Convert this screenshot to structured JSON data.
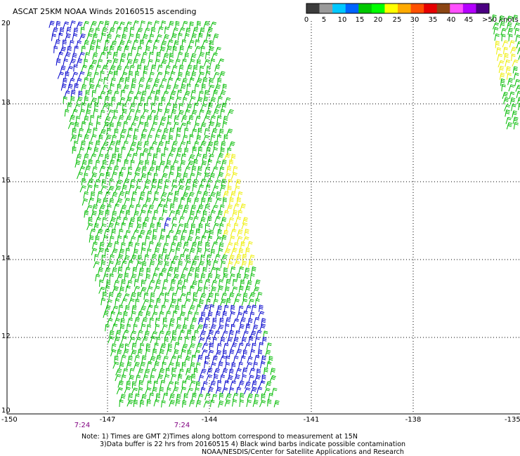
{
  "title": "ASCAT 25KM NOAA Winds 20160515 ascending",
  "legend": {
    "labels": [
      "0",
      "5",
      "10",
      "15",
      "20",
      "25",
      "30",
      "35",
      "40",
      "45",
      ">50 knots"
    ],
    "colors": [
      "#3c3c3c",
      "#9a9a9a",
      "#00c8ff",
      "#0064ff",
      "#00c800",
      "#00ff00",
      "#ffff00",
      "#ffaa00",
      "#ff5000",
      "#e60000",
      "#8b4513",
      "#ff50ff",
      "#b400ff",
      "#4b0082"
    ]
  },
  "map": {
    "lon_range": [
      -150,
      -135
    ],
    "lat_range": [
      10,
      20
    ],
    "lon_ticks": [
      "-150",
      "-147",
      "-144",
      "-141",
      "-138",
      "-135"
    ],
    "lat_ticks": [
      "20",
      "18",
      "16",
      "14",
      "12",
      "10"
    ],
    "time_labels": [
      "7:24",
      "7:24"
    ],
    "time_color": "#800080",
    "barb_colors": {
      "blue": "#0000cc",
      "green": "#00bb00",
      "yellow": "#eeee00"
    }
  },
  "notes": {
    "line1": "Note: 1) Times are GMT 2)Times along bottom correspond to measurement at 15N",
    "line2": "3)Data buffer is 22 hrs from 20160515 4) Black wind barbs indicate possible contamination",
    "line3": "NOAA/NESDIS/Center for Satellite Applications and Research"
  }
}
